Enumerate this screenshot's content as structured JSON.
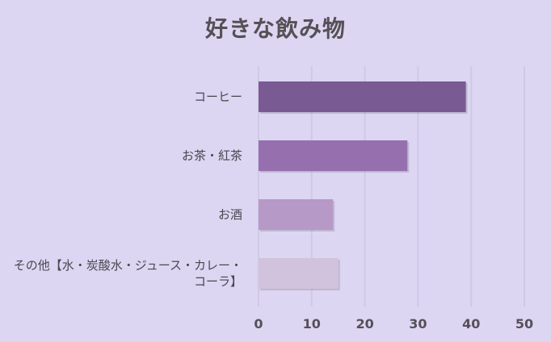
{
  "chart_data": {
    "type": "bar",
    "orientation": "horizontal",
    "title": "好きな飲み物",
    "categories": [
      "コーヒー",
      "お茶・紅茶",
      "お酒",
      "その他【水・炭酸水・ジュース・カレー・コーラ】"
    ],
    "category_lines": [
      [
        "コーヒー"
      ],
      [
        "お茶・紅茶"
      ],
      [
        "お酒"
      ],
      [
        "その他【水・炭酸水・ジュース・カレー・",
        "コーラ】"
      ]
    ],
    "values": [
      39,
      28,
      14,
      15
    ],
    "colors": [
      "#7a5a93",
      "#9670ae",
      "#b699c7",
      "#d1c3dd"
    ],
    "xlim": [
      0,
      50
    ],
    "xticks": [
      "0",
      "10",
      "20",
      "30",
      "40",
      "50"
    ],
    "grid": true,
    "legend": "none"
  }
}
